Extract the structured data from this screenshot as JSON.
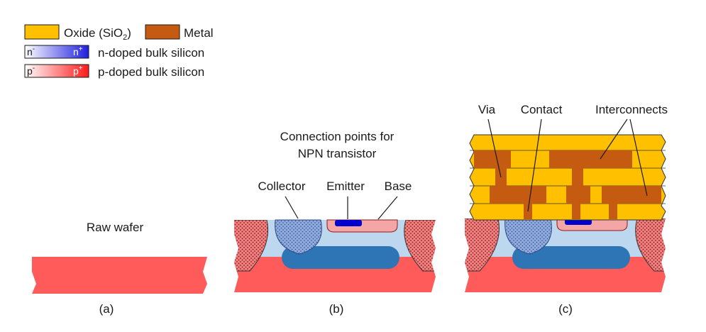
{
  "legend": {
    "oxide": "Oxide (SiO",
    "oxide_sub": "2",
    "oxide_close": ")",
    "metal": "Metal",
    "n_minus": "n",
    "n_minus_sup": "-",
    "n_plus": "n",
    "n_plus_sup": "+",
    "n_label": "n-doped bulk silicon",
    "p_minus": "p",
    "p_minus_sup": "-",
    "p_plus": "p",
    "p_plus_sup": "+",
    "p_label": "p-doped bulk silicon"
  },
  "panel_a": {
    "title": "Raw wafer",
    "caption": "(a)"
  },
  "panel_b": {
    "title_line1": "Connection points for",
    "title_line2": "NPN transistor",
    "collector": "Collector",
    "emitter": "Emitter",
    "base": "Base",
    "caption": "(b)"
  },
  "panel_c": {
    "via": "Via",
    "contact": "Contact",
    "interconnects": "Interconnects",
    "caption": "(c)"
  },
  "colors": {
    "oxide": "#FFC000",
    "metal": "#C55A11",
    "p_plus": "#FF5B5B",
    "p_light": "#F4A6A6",
    "n_light": "#BDD7EE",
    "n_plus": "#2E75B6",
    "emitter": "#0000CC"
  }
}
